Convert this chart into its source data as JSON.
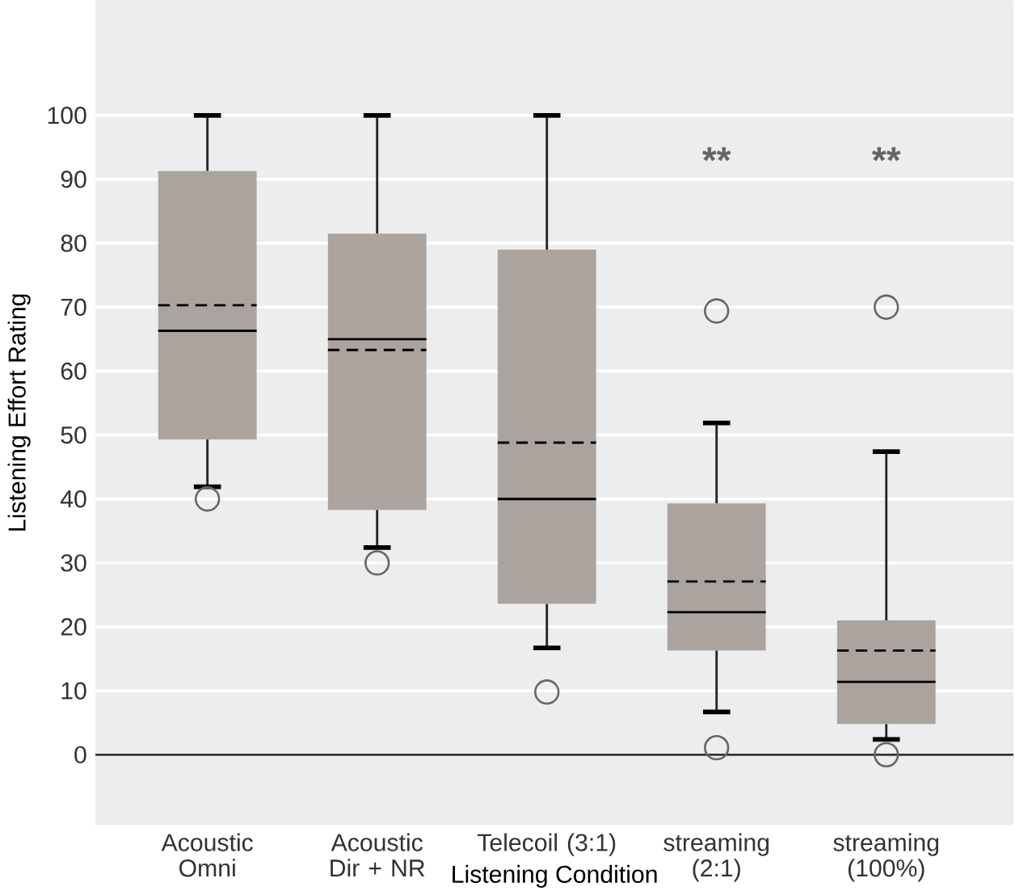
{
  "chart_data": {
    "type": "box",
    "xlabel": "Listening Condition",
    "ylabel": "Listening Effort Rating",
    "categories": [
      "Acoustic Omni",
      "Acoustic Dir + NR",
      "Telecoil (3:1)",
      "streaming (2:1)",
      "streaming (100%)"
    ],
    "series": [
      {
        "color": "#aba39e",
        "boxes": [
          {
            "low": 41.9,
            "q1": 49.3,
            "median": 66.3,
            "q3": 91.3,
            "high": 100,
            "mean": 70.3,
            "outliers": [
              40
            ]
          },
          {
            "low": 32.4,
            "q1": 38.3,
            "median": 65,
            "q3": 81.5,
            "high": 100,
            "mean": 63.3,
            "outliers": [
              30
            ]
          },
          {
            "low": 16.7,
            "q1": 23.6,
            "median": 40,
            "q3": 79,
            "high": 100,
            "mean": 48.8,
            "outliers": [
              9.8
            ]
          },
          {
            "low": 6.7,
            "q1": 16.3,
            "median": 22.3,
            "q3": 39.3,
            "high": 51.9,
            "mean": 27.1,
            "outliers": [
              69.4,
              1.1
            ]
          },
          {
            "low": 2.4,
            "q1": 4.8,
            "median": 11.4,
            "q3": 21,
            "high": 47.4,
            "mean": 16.3,
            "outliers": [
              70,
              0
            ]
          }
        ]
      }
    ],
    "ylim": [
      -11,
      118
    ],
    "yticks": [
      0,
      10,
      20,
      30,
      40,
      50,
      60,
      70,
      80,
      90,
      100
    ],
    "grid": "y",
    "ref_lines": [
      {
        "axis": "y",
        "value": 0
      }
    ],
    "annotations": [
      "**",
      "**"
    ]
  }
}
